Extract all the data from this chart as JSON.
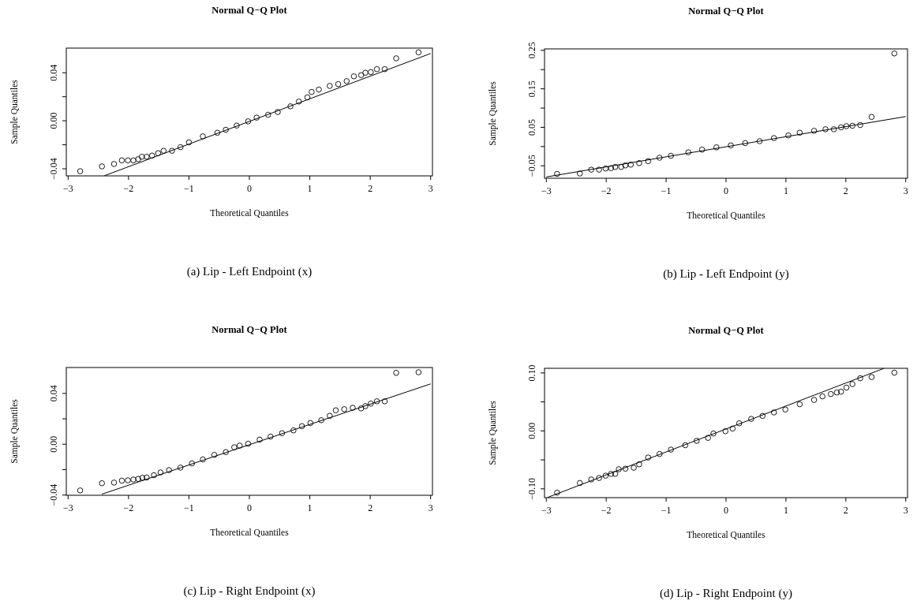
{
  "chart_data": [
    {
      "type": "scatter",
      "title": "Normal Q−Q Plot",
      "xlabel": "Theoretical Quantiles",
      "ylabel": "Sample Quantiles",
      "annotations": [
        "(a) Lip - Left Endpoint (x)"
      ],
      "xlim": [
        -3.03,
        3.03
      ],
      "ylim": [
        -0.0459,
        0.0605
      ],
      "xticks": [
        {
          "value": -3,
          "label": "−3"
        },
        {
          "value": -2,
          "label": "−2"
        },
        {
          "value": -1,
          "label": "−1"
        },
        0,
        1,
        2,
        3
      ],
      "yticks": [
        {
          "value": -0.04,
          "label": "−0.04"
        },
        {
          "value": -0.02,
          "label": null
        },
        {
          "value": 0,
          "label": "0.00"
        },
        {
          "value": 0.02,
          "label": null
        },
        0.04
      ],
      "series": [
        {
          "marker": "circle",
          "color": "#000000",
          "x": [
            -2.8,
            -2.44,
            -2.24,
            -2.11,
            -2.01,
            -1.92,
            -1.84,
            -1.78,
            -1.7,
            -1.61,
            -1.51,
            -1.42,
            -1.28,
            -1.14,
            -1.0,
            -0.77,
            -0.53,
            -0.39,
            -0.21,
            -0.02,
            0.12,
            0.31,
            0.47,
            0.68,
            0.82,
            0.96,
            1.03,
            1.15,
            1.33,
            1.47,
            1.61,
            1.73,
            1.85,
            1.92,
            2.01,
            2.11,
            2.24,
            2.43,
            2.8
          ],
          "values": [
            -0.042,
            -0.038,
            -0.036,
            -0.033,
            -0.033,
            -0.033,
            -0.032,
            -0.03,
            -0.03,
            -0.029,
            -0.027,
            -0.025,
            -0.025,
            -0.022,
            -0.018,
            -0.013,
            -0.01,
            -0.0075,
            -0.004,
            -0.0005,
            0.0026,
            0.005,
            0.0073,
            0.012,
            0.016,
            0.0195,
            0.024,
            0.026,
            0.029,
            0.0305,
            0.033,
            0.037,
            0.038,
            0.04,
            0.0405,
            0.043,
            0.043,
            0.052,
            0.057
          ]
        },
        {
          "type": "line",
          "color": "#000000",
          "x": [
            -2.4,
            3.0
          ],
          "values": [
            -0.0458,
            0.056
          ]
        }
      ]
    },
    {
      "type": "scatter",
      "title": "Normal Q−Q Plot",
      "xlabel": "Theoretical Quantiles",
      "ylabel": "Sample Quantiles",
      "annotations": [
        "(b) Lip - Left Endpoint (y)"
      ],
      "xlim": [
        -3.03,
        3.03
      ],
      "ylim": [
        -0.0823,
        0.2538
      ],
      "xticks": [
        {
          "value": -3,
          "label": "−3"
        },
        {
          "value": -2,
          "label": "−2"
        },
        {
          "value": -1,
          "label": "−1"
        },
        0,
        1,
        2,
        3
      ],
      "yticks": [
        {
          "value": -0.05,
          "label": "−0.05"
        },
        {
          "value": 0,
          "label": null
        },
        0.05,
        {
          "value": 0.1,
          "label": null
        },
        0.15,
        {
          "value": 0.2,
          "label": null
        },
        0.25
      ],
      "series": [
        {
          "marker": "circle",
          "color": "#000000",
          "x": [
            -2.82,
            -2.44,
            -2.25,
            -2.12,
            -2.01,
            -1.92,
            -1.85,
            -1.75,
            -1.68,
            -1.59,
            -1.45,
            -1.3,
            -1.11,
            -0.92,
            -0.63,
            -0.4,
            -0.16,
            0.08,
            0.32,
            0.56,
            0.8,
            1.04,
            1.23,
            1.47,
            1.66,
            1.8,
            1.92,
            2.01,
            2.11,
            2.24,
            2.43,
            2.81
          ],
          "values": [
            -0.071,
            -0.07,
            -0.06,
            -0.06,
            -0.057,
            -0.056,
            -0.053,
            -0.053,
            -0.049,
            -0.047,
            -0.043,
            -0.038,
            -0.029,
            -0.024,
            -0.015,
            -0.008,
            -0.002,
            0.003,
            0.009,
            0.014,
            0.022,
            0.029,
            0.036,
            0.041,
            0.045,
            0.045,
            0.05,
            0.053,
            0.054,
            0.056,
            0.077,
            0.242
          ]
        },
        {
          "type": "line",
          "color": "#000000",
          "x": [
            -3.0,
            3.0
          ],
          "values": [
            -0.079,
            0.078
          ]
        }
      ]
    },
    {
      "type": "scatter",
      "title": "Normal Q−Q Plot",
      "xlabel": "Theoretical Quantiles",
      "ylabel": "Sample Quantiles",
      "annotations": [
        "(c) Lip - Right Endpoint (x)"
      ],
      "xlim": [
        -3.03,
        3.03
      ],
      "ylim": [
        -0.0402,
        0.0604
      ],
      "xticks": [
        {
          "value": -3,
          "label": "−3"
        },
        {
          "value": -2,
          "label": "−2"
        },
        {
          "value": -1,
          "label": "−1"
        },
        0,
        1,
        2,
        3
      ],
      "yticks": [
        {
          "value": -0.04,
          "label": "−0.04"
        },
        {
          "value": -0.02,
          "label": null
        },
        {
          "value": 0,
          "label": "0.00"
        },
        {
          "value": 0.02,
          "label": null
        },
        0.04
      ],
      "series": [
        {
          "marker": "circle",
          "color": "#000000",
          "x": [
            -2.8,
            -2.44,
            -2.24,
            -2.11,
            -2.01,
            -1.92,
            -1.84,
            -1.77,
            -1.7,
            -1.58,
            -1.47,
            -1.33,
            -1.14,
            -0.95,
            -0.77,
            -0.58,
            -0.39,
            -0.25,
            -0.16,
            -0.02,
            0.17,
            0.35,
            0.54,
            0.73,
            0.87,
            1.01,
            1.19,
            1.33,
            1.43,
            1.57,
            1.71,
            1.85,
            1.92,
            2.01,
            2.11,
            2.24,
            2.43,
            2.8
          ],
          "values": [
            -0.0364,
            -0.0307,
            -0.0302,
            -0.0287,
            -0.0284,
            -0.0278,
            -0.0273,
            -0.0264,
            -0.0262,
            -0.0244,
            -0.0222,
            -0.0204,
            -0.0184,
            -0.0151,
            -0.012,
            -0.0084,
            -0.0062,
            -0.0024,
            -0.0011,
            0.0004,
            0.0036,
            0.006,
            0.0087,
            0.0109,
            0.0142,
            0.0167,
            0.0189,
            0.0224,
            0.0267,
            0.0276,
            0.0287,
            0.0282,
            0.03,
            0.032,
            0.0338,
            0.0338,
            0.0562,
            0.0567
          ]
        },
        {
          "type": "line",
          "color": "#000000",
          "x": [
            -2.44,
            3.0
          ],
          "values": [
            -0.0393,
            0.0475
          ]
        }
      ]
    },
    {
      "type": "scatter",
      "title": "Normal Q−Q Plot",
      "xlabel": "Theoretical Quantiles",
      "ylabel": "Sample Quantiles",
      "annotations": [
        "(d) Lip - Right Endpoint (y)"
      ],
      "xlim": [
        -3.03,
        3.03
      ],
      "ylim": [
        -0.1152,
        0.108
      ],
      "xticks": [
        {
          "value": -3,
          "label": "−3"
        },
        {
          "value": -2,
          "label": "−2"
        },
        {
          "value": -1,
          "label": "−1"
        },
        0,
        1,
        2,
        3
      ],
      "yticks": [
        {
          "value": -0.1,
          "label": "−0.10"
        },
        {
          "value": -0.05,
          "label": null
        },
        {
          "value": 0,
          "label": "0.00"
        },
        {
          "value": 0.05,
          "label": null
        },
        {
          "value": 0.1,
          "label": "0.10"
        }
      ],
      "series": [
        {
          "marker": "circle",
          "color": "#000000",
          "x": [
            -2.82,
            -2.44,
            -2.25,
            -2.12,
            -2.01,
            -1.92,
            -1.85,
            -1.79,
            -1.68,
            -1.54,
            -1.45,
            -1.3,
            -1.11,
            -0.92,
            -0.68,
            -0.49,
            -0.3,
            -0.21,
            -0.01,
            0.11,
            0.22,
            0.42,
            0.61,
            0.8,
            0.99,
            1.23,
            1.47,
            1.61,
            1.75,
            1.85,
            1.92,
            2.01,
            2.11,
            2.24,
            2.43,
            2.81
          ],
          "values": [
            -0.1066,
            -0.0899,
            -0.0838,
            -0.0813,
            -0.0773,
            -0.0742,
            -0.0742,
            -0.0662,
            -0.0652,
            -0.0636,
            -0.0576,
            -0.046,
            -0.0399,
            -0.0323,
            -0.0247,
            -0.0172,
            -0.0121,
            -0.0045,
            -0.0005,
            0.004,
            0.0131,
            0.0207,
            0.0258,
            0.0318,
            0.0369,
            0.046,
            0.0535,
            0.0596,
            0.0636,
            0.0662,
            0.0677,
            0.0747,
            0.0808,
            0.0909,
            0.0929,
            0.1005
          ]
        },
        {
          "type": "line",
          "color": "#000000",
          "x": [
            -2.98,
            2.64
          ],
          "values": [
            -0.1149,
            0.108
          ]
        }
      ]
    }
  ]
}
